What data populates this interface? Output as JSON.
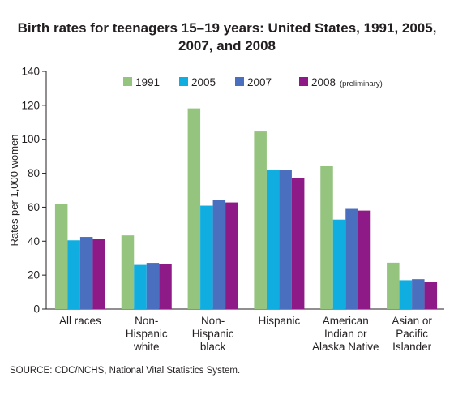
{
  "title_line1": "Birth rates for teenagers 15–19 years: United States, 1991, 2005,",
  "title_line2": "2007, and 2008",
  "source": "SOURCE: CDC/NCHS, National Vital Statistics System.",
  "chart_data": {
    "type": "bar",
    "title": "Birth rates for teenagers 15–19 years: United States, 1991, 2005, 2007, and 2008",
    "xlabel": "",
    "ylabel": "Rates per 1,000 women",
    "ylim": [
      0,
      140
    ],
    "yticks": [
      0,
      20,
      40,
      60,
      80,
      100,
      120,
      140
    ],
    "grid": false,
    "legend_position": "top",
    "categories": [
      [
        "All races"
      ],
      [
        "Non-",
        "Hispanic",
        "white"
      ],
      [
        "Non-",
        "Hispanic",
        "black"
      ],
      [
        "Hispanic"
      ],
      [
        "American",
        "Indian or",
        "Alaska Native"
      ],
      [
        "Asian or",
        "Pacific",
        "Islander"
      ]
    ],
    "series": [
      {
        "name": "1991",
        "note": "",
        "color": "#94c47d",
        "values": [
          61.8,
          43.4,
          118.2,
          104.6,
          84.1,
          27.3
        ]
      },
      {
        "name": "2005",
        "note": "",
        "color": "#10aee0",
        "values": [
          40.5,
          26.0,
          60.9,
          81.7,
          52.7,
          17.0
        ]
      },
      {
        "name": "2007",
        "note": "",
        "color": "#4a6fbe",
        "values": [
          42.5,
          27.2,
          64.2,
          81.7,
          59.0,
          17.6
        ]
      },
      {
        "name": "2008",
        "note": "(preliminary)",
        "color": "#8d1a86",
        "values": [
          41.5,
          26.7,
          62.8,
          77.4,
          58.0,
          16.2
        ]
      }
    ]
  }
}
